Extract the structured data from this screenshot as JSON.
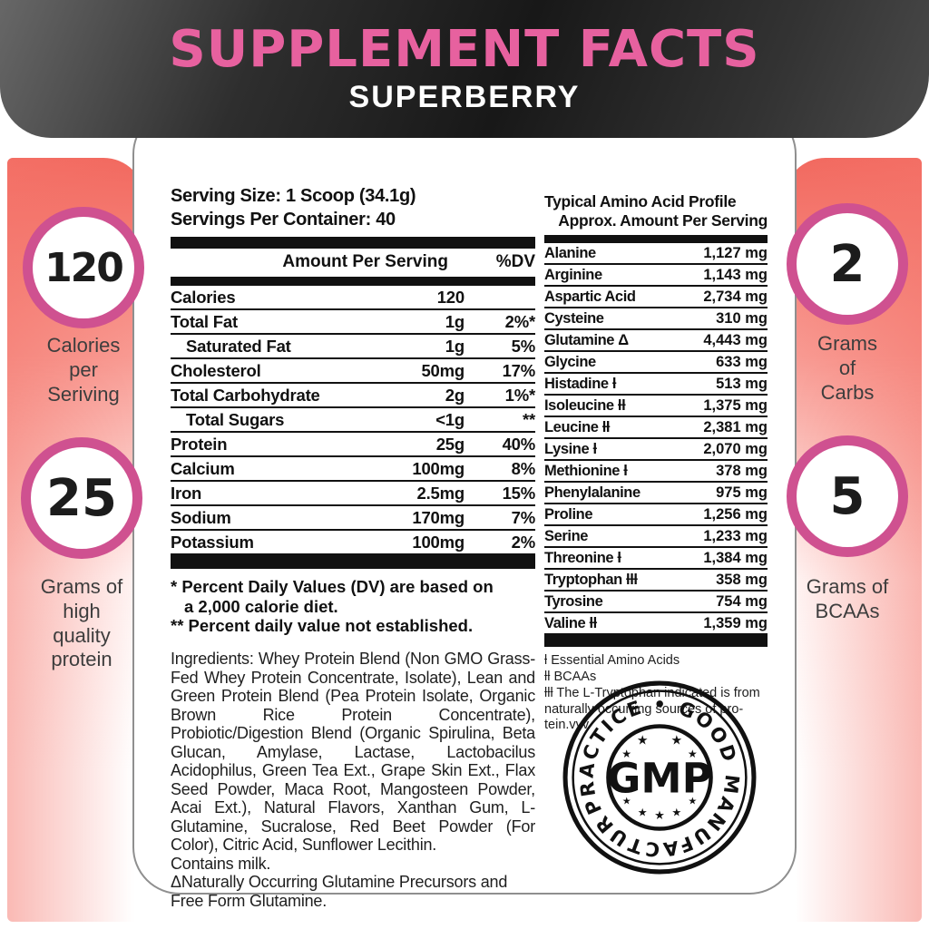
{
  "header": {
    "title": "SUPPLEMENT FACTS",
    "subtitle": "SUPERBERRY"
  },
  "colors": {
    "accent_pink": "#e7619f",
    "ring_pink": "#cf5190",
    "salmon": "#f2695f",
    "header_dark": "#1c1c1c"
  },
  "badges": {
    "calories": {
      "value": "120",
      "label": "Calories\nper\nSeriving"
    },
    "protein": {
      "value": "25",
      "label": "Grams of\nhigh\nquality\nprotein"
    },
    "carbs": {
      "value": "2",
      "label": "Grams\nof\nCarbs"
    },
    "bcaas": {
      "value": "5",
      "label": "Grams of\nBCAAs"
    }
  },
  "facts": {
    "serving_size": "Serving Size: 1 Scoop (34.1g)",
    "servings_per_container": "Servings Per Container: 40",
    "col_amount": "Amount Per Serving",
    "col_dv": "%DV",
    "rows": [
      {
        "name": "Calories",
        "amount": "120",
        "dv": "",
        "indent": false
      },
      {
        "name": "Total Fat",
        "amount": "1g",
        "dv": "2%*",
        "indent": false
      },
      {
        "name": "Saturated Fat",
        "amount": "1g",
        "dv": "5%",
        "indent": true
      },
      {
        "name": "Cholesterol",
        "amount": "50mg",
        "dv": "17%",
        "indent": false
      },
      {
        "name": "Total Carbohydrate",
        "amount": "2g",
        "dv": "1%*",
        "indent": false
      },
      {
        "name": "Total Sugars",
        "amount": "<1g",
        "dv": "**",
        "indent": true
      },
      {
        "name": "Protein",
        "amount": "25g",
        "dv": "40%",
        "indent": false
      },
      {
        "name": "Calcium",
        "amount": "100mg",
        "dv": "8%",
        "indent": false
      },
      {
        "name": "Iron",
        "amount": "2.5mg",
        "dv": "15%",
        "indent": false
      },
      {
        "name": "Sodium",
        "amount": "170mg",
        "dv": "7%",
        "indent": false
      },
      {
        "name": "Potassium",
        "amount": "100mg",
        "dv": "2%",
        "indent": false
      }
    ],
    "footnote1a": "* Percent Daily Values (DV) are based on",
    "footnote1b": "a 2,000 calorie diet.",
    "footnote2": "** Percent daily value not established.",
    "ingredients": "Ingredients: Whey Protein Blend (Non GMO Grass-Fed Whey Protein Concentrate, Isolate), Lean and Green Protein Blend (Pea Protein Isolate, Organic Brown Rice Protein Concentrate), Probiotic/Digestion Blend (Organic Spirulina, Beta Glucan, Amylase, Lactase, Lactobacilus Acidophilus, Green Tea Ext., Grape Skin Ext., Flax Seed Powder, Maca Root, Mangosteen Powder, Acai Ext.), Natural Flavors, Xanthan Gum, L-Glutamine, Sucralose, Red Beet Powder (For Color), Citric Acid, Sunflower Lecithin.",
    "contains": "Contains milk.",
    "glutamine_note": "ΔNaturally Occurring Glutamine Precursors and Free Form Glutamine."
  },
  "amino": {
    "title": "Typical Amino Acid Profile",
    "subtitle": "Approx. Amount Per Serving",
    "rows": [
      {
        "name": "Alanine",
        "amount": "1,127 mg"
      },
      {
        "name": "Arginine",
        "amount": "1,143 mg"
      },
      {
        "name": "Aspartic Acid",
        "amount": "2,734 mg"
      },
      {
        "name": "Cysteine",
        "amount": "310 mg"
      },
      {
        "name": "Glutamine Δ",
        "amount": "4,443 mg"
      },
      {
        "name": "Glycine",
        "amount": "633 mg"
      },
      {
        "name": "Histadine ƚ",
        "amount": "513 mg"
      },
      {
        "name": "Isoleucine ƚƚ",
        "amount": "1,375 mg"
      },
      {
        "name": "Leucine ƚƚ",
        "amount": "2,381 mg"
      },
      {
        "name": "Lysine ƚ",
        "amount": "2,070 mg"
      },
      {
        "name": "Methionine ƚ",
        "amount": "378 mg"
      },
      {
        "name": "Phenylalanine",
        "amount": "975 mg"
      },
      {
        "name": "Proline",
        "amount": "1,256 mg"
      },
      {
        "name": "Serine",
        "amount": "1,233 mg"
      },
      {
        "name": "Threonine ƚ",
        "amount": "1,384 mg"
      },
      {
        "name": "Tryptophan ƚƚƚ",
        "amount": "358 mg"
      },
      {
        "name": "Tyrosine",
        "amount": "754 mg"
      },
      {
        "name": "Valine ƚƚ",
        "amount": "1,359 mg"
      }
    ],
    "footnote1": "ƚ Essential Amino Acids",
    "footnote2": "ƚƚ BCAAs",
    "footnote3": "ƚƚƚ The L-Tryptophan indicated is from naturally occurring sources of pro-tein.vvv"
  },
  "gmp": {
    "center": "GMP",
    "ring_text": "PRACTICE • GOOD MANUFACTURING"
  }
}
